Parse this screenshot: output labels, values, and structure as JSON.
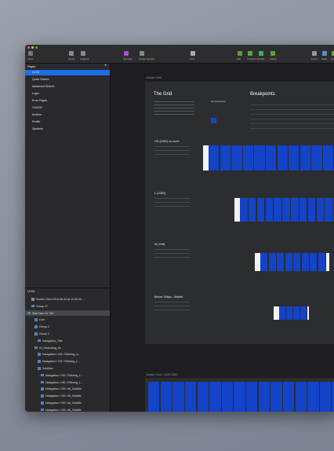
{
  "toolbar": {
    "items": [
      "Insert",
      "Group",
      "Ungroup",
      "Symbols",
      "Create Symbol",
      "27%",
      "Edit",
      "Transform",
      "Rotate",
      "Flatten",
      "Forms",
      "Mask",
      "Scale"
    ]
  },
  "sidebar": {
    "pages_title": "Pages",
    "pages": [
      "UI Kit",
      "Quick Search",
      "Advanced Search",
      "Login",
      "Error Pages",
      "CHAOS",
      "Archive",
      "Profile",
      "Symbols"
    ],
    "layers_title": "UI Kit",
    "layers": [
      "Screen Shot 2018-06-04 at 11.53.40...",
      "Group 27",
      "Side Nav LG 768",
      "Line",
      "Group 2",
      "Group 3",
      "Navigation_Title",
      "01_Searching_fix",
      "Navigation / HD / Filtering_Li...",
      "Navigation / HD / Filtering_L...",
      "Subtitles",
      "Navigation / HD / Filtering_L...",
      "Navigation / HD / Filtering_L...",
      "Navigation / HD / All_Subtitle",
      "Navigation / HD / All_Subtitle",
      "Navigation / HD / All_Subtitle",
      "Navigation / HD / All_Subtitle"
    ]
  },
  "canvas": {
    "artboard_label": "Global / Grid",
    "title": "The Grid",
    "breakpoints_title": "Breakpoints",
    "grid_system": "App Grid System",
    "sections": [
      "HD (1920) or more",
      "L (1280)",
      "M (768)",
      "Below 768px - Mobile"
    ],
    "artboard2_label": "Global / Grid / 1920-1080"
  }
}
